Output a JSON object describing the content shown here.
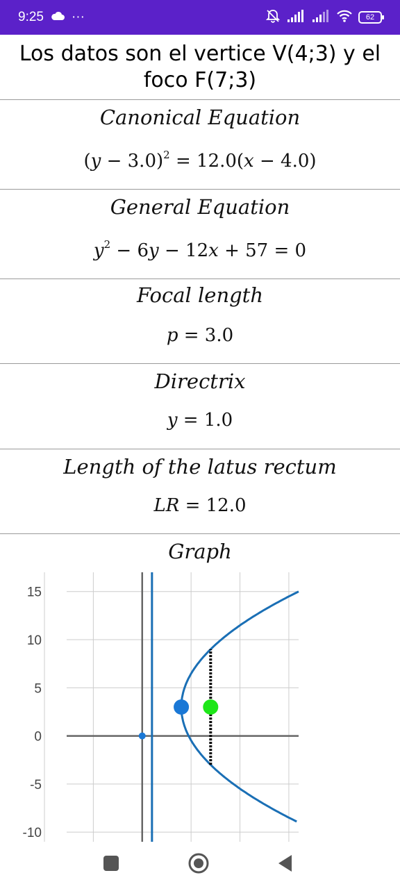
{
  "status_bar": {
    "time": "9:25",
    "more": "···",
    "battery": "62",
    "colors": {
      "background": "#5b21c9",
      "foreground": "#ffffff"
    },
    "icons": [
      "cloud-icon",
      "alarm-off-icon",
      "signal-icon",
      "signal-icon",
      "wifi-icon",
      "battery-icon"
    ]
  },
  "header": {
    "text": "Los datos son el vertice V(4;3) y el foco F(7;3)"
  },
  "sections": {
    "canonical": {
      "title": "Canonical Equation"
    },
    "general": {
      "title": "General Equation"
    },
    "focal": {
      "title": "Focal length"
    },
    "directrix": {
      "title": "Directrix"
    },
    "latus": {
      "title": "Length of the latus rectum"
    },
    "graph": {
      "title": "Graph"
    }
  },
  "chart_data": {
    "type": "scatter",
    "title": "Graph",
    "xlabel": "",
    "ylabel": "",
    "ylim": [
      -11,
      17
    ],
    "xlim": [
      -10,
      16
    ],
    "y_ticks": [
      15,
      10,
      5,
      0,
      -5,
      -10
    ],
    "grid": true,
    "parabola": {
      "vertex": [
        4,
        3
      ],
      "focus": [
        7,
        3
      ],
      "p": 3,
      "opens": "right",
      "color": "#1a6fb5"
    },
    "directrix_line_x": 1,
    "latus_rectum": {
      "x": 7,
      "y_from": -3,
      "y_to": 9,
      "style": "dotted",
      "color": "#000000"
    },
    "points": [
      {
        "label": "vertex",
        "x": 4,
        "y": 3,
        "color": "#1a78d6",
        "size": "large"
      },
      {
        "label": "focus",
        "x": 7,
        "y": 3,
        "color": "#1ee619",
        "size": "large"
      },
      {
        "label": "origin",
        "x": 0,
        "y": 0,
        "color": "#1a78d6",
        "size": "small"
      }
    ],
    "axis_color": "#666666",
    "grid_color": "#cccccc"
  },
  "nav_bar": {
    "icons": [
      "recent-apps-icon",
      "home-icon",
      "back-icon"
    ],
    "color": "#555555"
  }
}
